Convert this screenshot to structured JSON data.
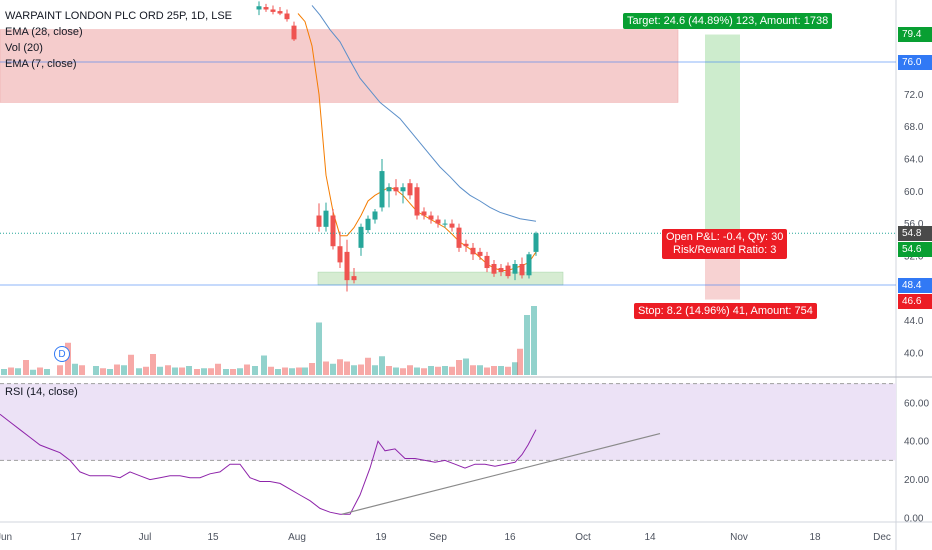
{
  "legend": {
    "title": "WARPAINT LONDON PLC ORD 25P, 1D, LSE",
    "ema28": "EMA (28, close)",
    "vol": "Vol (20)",
    "ema7": "EMA (7, close)"
  },
  "rsi_legend": "RSI (14, close)",
  "tags": {
    "target": "Target: 24.6 (44.89%) 123, Amount: 1738",
    "pnl_line1": "Open P&L: -0.4, Qty: 30",
    "pnl_line2": "Risk/Reward Ratio: 3",
    "stop": "Stop: 8.2 (14.96%) 41, Amount: 754"
  },
  "dividend_badge": "D",
  "price_tags": [
    {
      "label": "79.4",
      "color": "#089f32"
    },
    {
      "label": "76.0",
      "color": "#3179f5"
    },
    {
      "label": "54.8",
      "color": "#4a4a4a"
    },
    {
      "label": "54.6",
      "color": "#089f32"
    },
    {
      "label": "48.4",
      "color": "#3179f5"
    },
    {
      "label": "46.6",
      "color": "#ec1c24"
    }
  ],
  "colors": {
    "up": "#26a69a",
    "down": "#ef5350",
    "ema7": "#f57c00",
    "ema28": "#5b8fc9",
    "rsi": "#8e24aa",
    "resistance_zone": "#f4c7c7",
    "support_zone": "#d6ecd2",
    "target_zone": "#cdeccd",
    "stop_zone": "#f7d2d2"
  },
  "chart_data": [
    {
      "type": "candlestick",
      "title": "WARPAINT LONDON PLC ORD 25P, 1D, LSE",
      "ylim": [
        36.5,
        83
      ],
      "yticks": [
        "40.0",
        "44.0",
        "48.4",
        "52.0",
        "56.0",
        "60.0",
        "64.0",
        "68.0",
        "72.0",
        "76.0",
        "79.4"
      ],
      "xticks": [
        "Jun",
        "17",
        "Jul",
        "15",
        "Aug",
        "19",
        "Sep",
        "16",
        "Oct",
        "14",
        "Nov",
        "18",
        "Dec"
      ],
      "last_price": 54.8,
      "horizontal_lines": [
        76.0,
        48.4
      ],
      "resistance_zone": [
        71,
        80
      ],
      "support_zone": [
        48.4,
        50
      ],
      "position": {
        "entry": 54.8,
        "target": 79.4,
        "stop": 46.6,
        "qty": 30,
        "risk_reward": 3
      },
      "candles": [
        {
          "d": "Jul 30",
          "o": 82.5,
          "h": 83.5,
          "l": 81.8,
          "c": 82.9
        },
        {
          "d": "Jul 31",
          "o": 82.8,
          "h": 83.2,
          "l": 82.2,
          "c": 82.5
        },
        {
          "d": "Aug 1",
          "o": 82.5,
          "h": 83.0,
          "l": 81.9,
          "c": 82.2
        },
        {
          "d": "Aug 2",
          "o": 82.3,
          "h": 82.8,
          "l": 81.8,
          "c": 82.0
        },
        {
          "d": "Aug 5",
          "o": 82.0,
          "h": 82.5,
          "l": 81.0,
          "c": 81.3
        },
        {
          "d": "Aug 6",
          "o": 80.5,
          "h": 81.0,
          "l": 78.6,
          "c": 78.8
        },
        {
          "d": "Aug 13",
          "o": 57.0,
          "h": 58.5,
          "l": 55.0,
          "c": 55.6
        },
        {
          "d": "Aug 14",
          "o": 55.6,
          "h": 58.6,
          "l": 55.0,
          "c": 57.6
        },
        {
          "d": "Aug 15",
          "o": 57.0,
          "h": 57.8,
          "l": 52.8,
          "c": 53.2
        },
        {
          "d": "Aug 16",
          "o": 53.2,
          "h": 55.0,
          "l": 50.5,
          "c": 51.2
        },
        {
          "d": "Aug 19",
          "o": 52.5,
          "h": 54.0,
          "l": 47.6,
          "c": 49.0
        },
        {
          "d": "Aug 20",
          "o": 49.5,
          "h": 50.5,
          "l": 48.6,
          "c": 49.0
        },
        {
          "d": "Aug 21",
          "o": 53.0,
          "h": 56.0,
          "l": 52.0,
          "c": 55.6
        },
        {
          "d": "Aug 22",
          "o": 55.2,
          "h": 57.0,
          "l": 54.8,
          "c": 56.6
        },
        {
          "d": "Aug 23",
          "o": 56.5,
          "h": 57.8,
          "l": 56.0,
          "c": 57.5
        },
        {
          "d": "Aug 27",
          "o": 58.0,
          "h": 64.0,
          "l": 57.5,
          "c": 62.5
        },
        {
          "d": "Aug 28",
          "o": 60.0,
          "h": 61.0,
          "l": 58.0,
          "c": 60.5
        },
        {
          "d": "Aug 29",
          "o": 60.5,
          "h": 61.5,
          "l": 59.5,
          "c": 60.0
        },
        {
          "d": "Aug 30",
          "o": 60.0,
          "h": 61.0,
          "l": 58.5,
          "c": 60.5
        },
        {
          "d": "Sep 2",
          "o": 61.0,
          "h": 61.5,
          "l": 59.0,
          "c": 59.5
        },
        {
          "d": "Sep 3",
          "o": 60.5,
          "h": 61.0,
          "l": 56.5,
          "c": 57.0
        },
        {
          "d": "Sep 4",
          "o": 57.5,
          "h": 58.0,
          "l": 56.5,
          "c": 57.0
        },
        {
          "d": "Sep 5",
          "o": 57.0,
          "h": 57.5,
          "l": 56.0,
          "c": 56.5
        },
        {
          "d": "Sep 6",
          "o": 56.5,
          "h": 57.0,
          "l": 55.5,
          "c": 56.0
        },
        {
          "d": "Sep 9",
          "o": 56.0,
          "h": 56.5,
          "l": 55.5,
          "c": 56.0
        },
        {
          "d": "Sep 10",
          "o": 56.0,
          "h": 56.5,
          "l": 55.0,
          "c": 55.5
        },
        {
          "d": "Sep 11",
          "o": 55.5,
          "h": 56.0,
          "l": 52.5,
          "c": 53.0
        },
        {
          "d": "Sep 12",
          "o": 53.5,
          "h": 54.0,
          "l": 52.5,
          "c": 53.2
        },
        {
          "d": "Sep 13",
          "o": 53.0,
          "h": 53.6,
          "l": 51.5,
          "c": 52.2
        },
        {
          "d": "Sep 16",
          "o": 52.5,
          "h": 53.0,
          "l": 51.5,
          "c": 52.0
        },
        {
          "d": "Sep 17",
          "o": 52.0,
          "h": 52.5,
          "l": 50.0,
          "c": 50.5
        },
        {
          "d": "Sep 18",
          "o": 51.0,
          "h": 51.5,
          "l": 49.4,
          "c": 49.8
        },
        {
          "d": "Sep 19",
          "o": 50.5,
          "h": 51.0,
          "l": 49.5,
          "c": 50.0
        },
        {
          "d": "Sep 20",
          "o": 50.8,
          "h": 51.2,
          "l": 49.2,
          "c": 49.5
        },
        {
          "d": "Sep 23",
          "o": 49.8,
          "h": 51.5,
          "l": 49.0,
          "c": 51.0
        },
        {
          "d": "Sep 24",
          "o": 51.0,
          "h": 51.8,
          "l": 49.2,
          "c": 49.6
        },
        {
          "d": "Sep 25",
          "o": 49.6,
          "h": 52.5,
          "l": 49.2,
          "c": 52.2
        },
        {
          "d": "Sep 26",
          "o": 52.5,
          "h": 55.0,
          "l": 52.0,
          "c": 54.8
        }
      ],
      "ema7": [
        [
          298,
          82.0
        ],
        [
          305,
          81.0
        ],
        [
          312,
          78.0
        ],
        [
          319,
          72.0
        ],
        [
          326,
          62.0
        ],
        [
          333,
          57.5
        ],
        [
          340,
          54.5
        ],
        [
          347,
          54.5
        ],
        [
          354,
          55.5
        ],
        [
          361,
          57.0
        ],
        [
          368,
          58.8
        ],
        [
          375,
          59.5
        ],
        [
          382,
          60.0
        ],
        [
          389,
          60.5
        ],
        [
          396,
          60.2
        ],
        [
          403,
          59.5
        ],
        [
          410,
          58.5
        ],
        [
          417,
          57.5
        ],
        [
          424,
          57.0
        ],
        [
          431,
          56.5
        ],
        [
          438,
          56.0
        ],
        [
          445,
          55.5
        ],
        [
          452,
          54.7
        ],
        [
          459,
          53.8
        ],
        [
          466,
          53.2
        ],
        [
          473,
          52.6
        ],
        [
          480,
          51.8
        ],
        [
          487,
          51.0
        ],
        [
          494,
          50.5
        ],
        [
          501,
          50.2
        ],
        [
          508,
          50.2
        ],
        [
          515,
          50.5
        ],
        [
          522,
          50.8
        ],
        [
          529,
          51.2
        ],
        [
          536,
          52.5
        ]
      ],
      "ema28": [
        [
          312,
          83.0
        ],
        [
          320,
          81.8
        ],
        [
          330,
          80.0
        ],
        [
          340,
          78.5
        ],
        [
          350,
          76.2
        ],
        [
          360,
          74.0
        ],
        [
          370,
          72.5
        ],
        [
          380,
          71.0
        ],
        [
          390,
          70.0
        ],
        [
          400,
          69.0
        ],
        [
          410,
          67.5
        ],
        [
          420,
          66.0
        ],
        [
          430,
          64.5
        ],
        [
          440,
          63.0
        ],
        [
          450,
          61.8
        ],
        [
          460,
          60.5
        ],
        [
          470,
          59.5
        ],
        [
          480,
          58.8
        ],
        [
          490,
          58.0
        ],
        [
          500,
          57.4
        ],
        [
          510,
          57.0
        ],
        [
          520,
          56.6
        ],
        [
          536,
          56.3
        ]
      ],
      "volume": [
        {
          "x": 4,
          "v": 0.8,
          "up": true
        },
        {
          "x": 11,
          "v": 1.0,
          "up": false
        },
        {
          "x": 18,
          "v": 0.9,
          "up": true
        },
        {
          "x": 26,
          "v": 2.0,
          "up": false
        },
        {
          "x": 33,
          "v": 0.7,
          "up": true
        },
        {
          "x": 40,
          "v": 1.0,
          "up": false
        },
        {
          "x": 47,
          "v": 0.8,
          "up": true
        },
        {
          "x": 60,
          "v": 1.3,
          "up": false
        },
        {
          "x": 68,
          "v": 4.3,
          "up": false
        },
        {
          "x": 75,
          "v": 1.5,
          "up": true
        },
        {
          "x": 82,
          "v": 1.3,
          "up": false
        },
        {
          "x": 96,
          "v": 1.2,
          "up": true
        },
        {
          "x": 103,
          "v": 0.9,
          "up": false
        },
        {
          "x": 110,
          "v": 0.8,
          "up": true
        },
        {
          "x": 117,
          "v": 1.4,
          "up": false
        },
        {
          "x": 124,
          "v": 1.3,
          "up": true
        },
        {
          "x": 131,
          "v": 2.7,
          "up": false
        },
        {
          "x": 139,
          "v": 0.9,
          "up": true
        },
        {
          "x": 146,
          "v": 1.1,
          "up": false
        },
        {
          "x": 153,
          "v": 2.8,
          "up": false
        },
        {
          "x": 160,
          "v": 1.1,
          "up": true
        },
        {
          "x": 168,
          "v": 1.3,
          "up": false
        },
        {
          "x": 175,
          "v": 1.0,
          "up": true
        },
        {
          "x": 182,
          "v": 1.0,
          "up": false
        },
        {
          "x": 189,
          "v": 1.2,
          "up": true
        },
        {
          "x": 197,
          "v": 0.8,
          "up": false
        },
        {
          "x": 204,
          "v": 0.9,
          "up": true
        },
        {
          "x": 211,
          "v": 0.9,
          "up": false
        },
        {
          "x": 218,
          "v": 1.5,
          "up": false
        },
        {
          "x": 226,
          "v": 0.8,
          "up": true
        },
        {
          "x": 233,
          "v": 0.8,
          "up": false
        },
        {
          "x": 240,
          "v": 0.9,
          "up": true
        },
        {
          "x": 247,
          "v": 1.4,
          "up": false
        },
        {
          "x": 255,
          "v": 1.2,
          "up": true
        },
        {
          "x": 264,
          "v": 2.6,
          "up": true
        },
        {
          "x": 271,
          "v": 1.1,
          "up": false
        },
        {
          "x": 278,
          "v": 0.8,
          "up": true
        },
        {
          "x": 285,
          "v": 1.0,
          "up": false
        },
        {
          "x": 292,
          "v": 0.9,
          "up": true
        },
        {
          "x": 299,
          "v": 1.0,
          "up": false
        },
        {
          "x": 305,
          "v": 1.0,
          "up": true
        },
        {
          "x": 312,
          "v": 1.6,
          "up": false
        },
        {
          "x": 319,
          "v": 7.0,
          "up": true
        },
        {
          "x": 326,
          "v": 1.8,
          "up": false
        },
        {
          "x": 333,
          "v": 1.5,
          "up": true
        },
        {
          "x": 340,
          "v": 2.1,
          "up": false
        },
        {
          "x": 347,
          "v": 1.8,
          "up": false
        },
        {
          "x": 354,
          "v": 1.3,
          "up": true
        },
        {
          "x": 361,
          "v": 1.4,
          "up": false
        },
        {
          "x": 368,
          "v": 2.3,
          "up": false
        },
        {
          "x": 375,
          "v": 1.3,
          "up": true
        },
        {
          "x": 382,
          "v": 2.5,
          "up": true
        },
        {
          "x": 389,
          "v": 1.2,
          "up": false
        },
        {
          "x": 396,
          "v": 1.0,
          "up": true
        },
        {
          "x": 403,
          "v": 0.9,
          "up": false
        },
        {
          "x": 410,
          "v": 1.3,
          "up": false
        },
        {
          "x": 417,
          "v": 1.0,
          "up": true
        },
        {
          "x": 424,
          "v": 0.9,
          "up": false
        },
        {
          "x": 431,
          "v": 1.2,
          "up": true
        },
        {
          "x": 438,
          "v": 1.1,
          "up": false
        },
        {
          "x": 445,
          "v": 1.2,
          "up": true
        },
        {
          "x": 452,
          "v": 1.1,
          "up": false
        },
        {
          "x": 459,
          "v": 2.0,
          "up": false
        },
        {
          "x": 466,
          "v": 2.2,
          "up": true
        },
        {
          "x": 473,
          "v": 1.3,
          "up": false
        },
        {
          "x": 480,
          "v": 1.3,
          "up": true
        },
        {
          "x": 487,
          "v": 1.0,
          "up": false
        },
        {
          "x": 494,
          "v": 1.2,
          "up": false
        },
        {
          "x": 501,
          "v": 1.2,
          "up": true
        },
        {
          "x": 508,
          "v": 1.1,
          "up": false
        },
        {
          "x": 515,
          "v": 1.7,
          "up": true
        },
        {
          "x": 520,
          "v": 3.5,
          "up": false
        },
        {
          "x": 527,
          "v": 8.0,
          "up": true
        },
        {
          "x": 534,
          "v": 9.2,
          "up": true
        }
      ],
      "volume_max": 10.0
    },
    {
      "type": "line",
      "title": "RSI (14, close)",
      "ylim": [
        0,
        75
      ],
      "yticks": [
        "0.00",
        "20.00",
        "40.00",
        "60.00"
      ],
      "bands": [
        30,
        70
      ],
      "rsi": [
        [
          0,
          54
        ],
        [
          10,
          50
        ],
        [
          20,
          46
        ],
        [
          30,
          42
        ],
        [
          40,
          38
        ],
        [
          50,
          36
        ],
        [
          60,
          34
        ],
        [
          70,
          30
        ],
        [
          80,
          24
        ],
        [
          90,
          22
        ],
        [
          100,
          22
        ],
        [
          110,
          22
        ],
        [
          120,
          21
        ],
        [
          130,
          24
        ],
        [
          140,
          22
        ],
        [
          150,
          20
        ],
        [
          160,
          21
        ],
        [
          170,
          22
        ],
        [
          180,
          22
        ],
        [
          190,
          21
        ],
        [
          200,
          21
        ],
        [
          210,
          23
        ],
        [
          220,
          24
        ],
        [
          230,
          28
        ],
        [
          240,
          28
        ],
        [
          250,
          21
        ],
        [
          260,
          19
        ],
        [
          270,
          19
        ],
        [
          280,
          18
        ],
        [
          290,
          15
        ],
        [
          300,
          12
        ],
        [
          310,
          9
        ],
        [
          320,
          5
        ],
        [
          330,
          3
        ],
        [
          340,
          2
        ],
        [
          350,
          2
        ],
        [
          360,
          12
        ],
        [
          370,
          26
        ],
        [
          378,
          40
        ],
        [
          385,
          35
        ],
        [
          395,
          36
        ],
        [
          405,
          31
        ],
        [
          415,
          31
        ],
        [
          425,
          30
        ],
        [
          435,
          29
        ],
        [
          445,
          30
        ],
        [
          455,
          28
        ],
        [
          465,
          26
        ],
        [
          475,
          28
        ],
        [
          485,
          28
        ],
        [
          495,
          27
        ],
        [
          505,
          28
        ],
        [
          515,
          29
        ],
        [
          522,
          33
        ],
        [
          528,
          38
        ],
        [
          536,
          46
        ]
      ],
      "trendline": [
        [
          342,
          2
        ],
        [
          660,
          44
        ]
      ]
    }
  ]
}
